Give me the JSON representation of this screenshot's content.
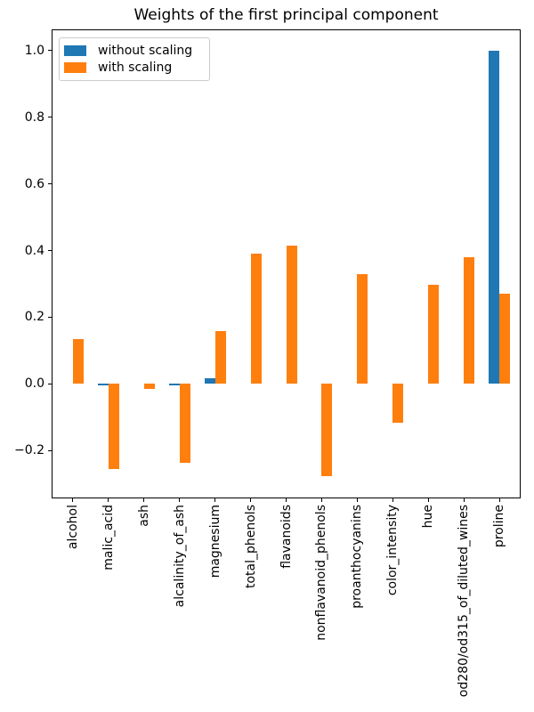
{
  "figure": {
    "title": "Weights of the first principal component"
  },
  "chart_data": {
    "type": "bar",
    "title": "Weights of the first principal component",
    "xlabel": "",
    "ylabel": "",
    "grid": false,
    "legend_position": "upper left",
    "categories": [
      "alcohol",
      "malic_acid",
      "ash",
      "alcalinity_of_ash",
      "magnesium",
      "total_phenols",
      "flavanoids",
      "nonflavanoid_phenols",
      "proanthocyanins",
      "color_intensity",
      "hue",
      "od280/od315_of_diluted_wines",
      "proline"
    ],
    "series": [
      {
        "name": "without scaling",
        "color": "#1f77b4",
        "values": [
          0.001,
          -0.004,
          0.0,
          -0.005,
          0.018,
          0.0,
          0.0,
          0.0,
          0.0,
          0.001,
          0.0,
          0.0,
          1.0
        ]
      },
      {
        "name": "with scaling",
        "color": "#ff7f0e",
        "values": [
          0.134,
          -0.255,
          -0.015,
          -0.237,
          0.158,
          0.391,
          0.414,
          -0.278,
          0.328,
          -0.116,
          0.298,
          0.38,
          0.271
        ]
      }
    ],
    "ylim": [
      -0.344,
      1.064
    ],
    "yticks": [
      1.0,
      0.8,
      0.6,
      0.4,
      0.2,
      0.0,
      -0.2
    ],
    "ytick_labels": [
      "1.0",
      "0.8",
      "0.6",
      "0.4",
      "0.2",
      "0.0",
      "−0.2"
    ]
  }
}
